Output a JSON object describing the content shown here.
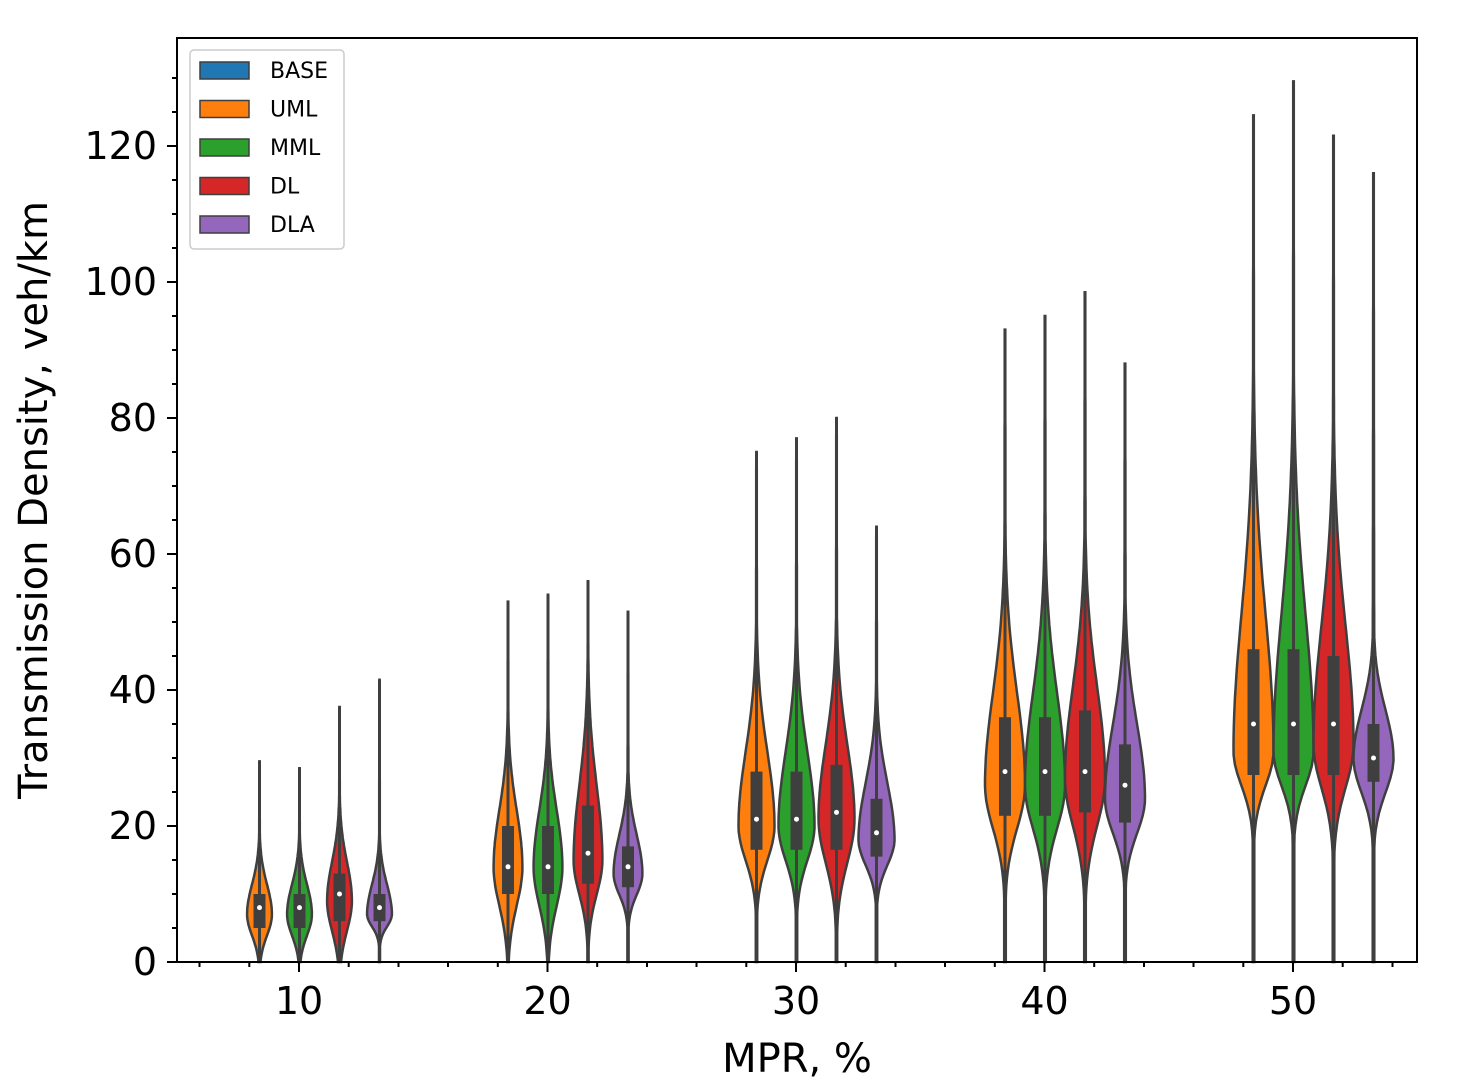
{
  "chart_data": {
    "type": "violin",
    "title": "",
    "xlabel": "MPR, %",
    "ylabel": "Transmission Density, veh/km",
    "categories": [
      "10",
      "20",
      "30",
      "40",
      "50"
    ],
    "ylim": [
      0,
      135
    ],
    "yticks": [
      0,
      20,
      40,
      60,
      80,
      100,
      120
    ],
    "legend_position": "top-left",
    "series": [
      {
        "name": "BASE",
        "color": "#1f77b4",
        "stats": []
      },
      {
        "name": "UML",
        "color": "#ff7f0e",
        "stats": [
          {
            "category": "10",
            "min": 0,
            "q1": 5,
            "median": 8,
            "q3": 10,
            "max": 29.5,
            "mode": 7
          },
          {
            "category": "20",
            "min": 0,
            "q1": 10,
            "median": 14,
            "q3": 20,
            "max": 53,
            "mode": 14
          },
          {
            "category": "30",
            "min": 0,
            "q1": 16.5,
            "median": 21,
            "q3": 28,
            "max": 75,
            "mode": 20
          },
          {
            "category": "40",
            "min": 0,
            "q1": 21.5,
            "median": 28,
            "q3": 36,
            "max": 93,
            "mode": 26
          },
          {
            "category": "50",
            "min": 0,
            "q1": 27.5,
            "median": 35,
            "q3": 46,
            "max": 124.5,
            "mode": 31
          }
        ]
      },
      {
        "name": "MML",
        "color": "#2ca02c",
        "stats": [
          {
            "category": "10",
            "min": 0,
            "q1": 5,
            "median": 8,
            "q3": 10,
            "max": 28.5,
            "mode": 7
          },
          {
            "category": "20",
            "min": 0,
            "q1": 10,
            "median": 14,
            "q3": 20,
            "max": 54,
            "mode": 14
          },
          {
            "category": "30",
            "min": 0,
            "q1": 16.5,
            "median": 21,
            "q3": 28,
            "max": 77,
            "mode": 20
          },
          {
            "category": "40",
            "min": 0,
            "q1": 21.5,
            "median": 28,
            "q3": 36,
            "max": 95,
            "mode": 26
          },
          {
            "category": "50",
            "min": 0,
            "q1": 27.5,
            "median": 35,
            "q3": 46,
            "max": 129.5,
            "mode": 31
          }
        ]
      },
      {
        "name": "DL",
        "color": "#d62728",
        "stats": [
          {
            "category": "10",
            "min": 0,
            "q1": 6,
            "median": 10,
            "q3": 13,
            "max": 37.5,
            "mode": 9
          },
          {
            "category": "20",
            "min": 0,
            "q1": 11.5,
            "median": 16,
            "q3": 23,
            "max": 56,
            "mode": 15
          },
          {
            "category": "30",
            "min": 0,
            "q1": 16.5,
            "median": 22,
            "q3": 29,
            "max": 80,
            "mode": 21
          },
          {
            "category": "40",
            "min": 0,
            "q1": 22,
            "median": 28,
            "q3": 37,
            "max": 98.5,
            "mode": 27
          },
          {
            "category": "50",
            "min": 0,
            "q1": 27.5,
            "median": 35,
            "q3": 45,
            "max": 121.5,
            "mode": 32
          }
        ]
      },
      {
        "name": "DLA",
        "color": "#9467bd",
        "stats": [
          {
            "category": "10",
            "min": 0,
            "q1": 6,
            "median": 8,
            "q3": 10,
            "max": 41.5,
            "mode": 7
          },
          {
            "category": "20",
            "min": 0,
            "q1": 11,
            "median": 14,
            "q3": 17,
            "max": 51.5,
            "mode": 13
          },
          {
            "category": "30",
            "min": 0,
            "q1": 15.5,
            "median": 19,
            "q3": 24,
            "max": 64,
            "mode": 18
          },
          {
            "category": "40",
            "min": 0,
            "q1": 20.5,
            "median": 26,
            "q3": 32,
            "max": 88,
            "mode": 24
          },
          {
            "category": "50",
            "min": 0,
            "q1": 26.5,
            "median": 30,
            "q3": 35,
            "max": 116,
            "mode": 30
          }
        ]
      }
    ]
  }
}
